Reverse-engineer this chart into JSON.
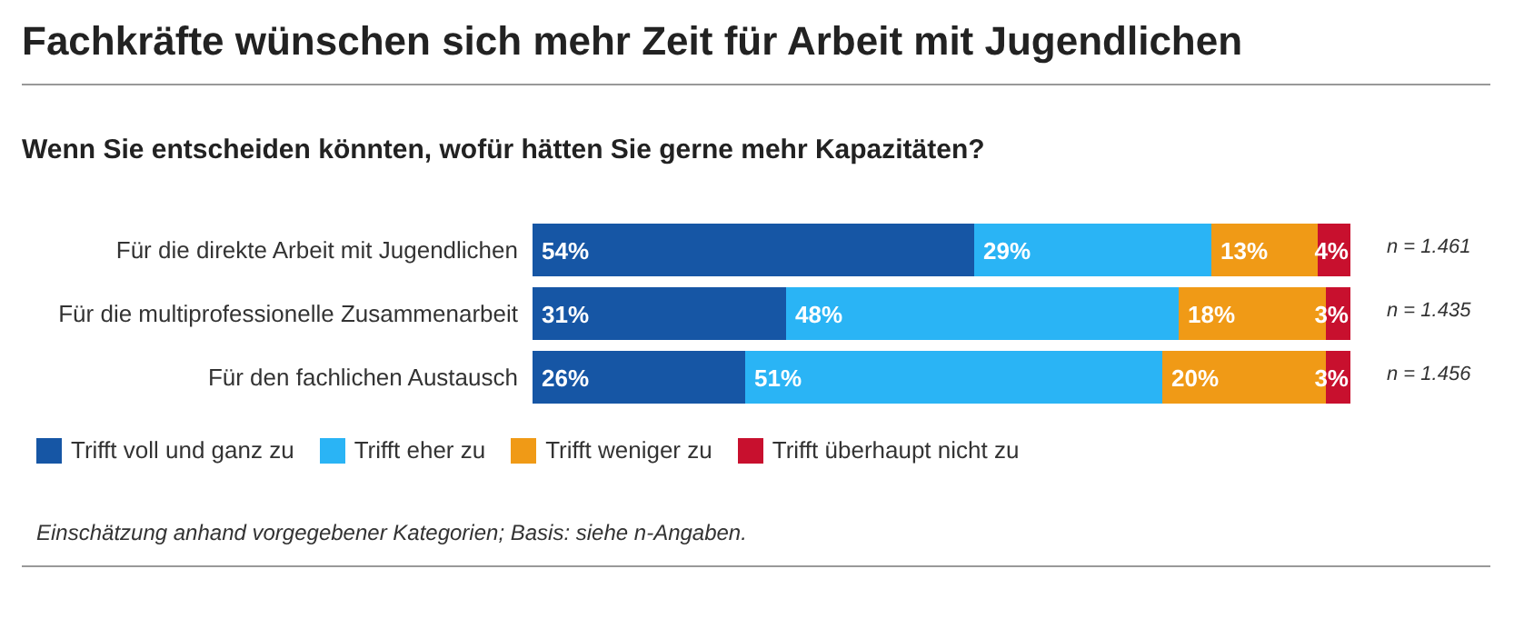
{
  "chart_data": {
    "type": "bar",
    "orientation": "horizontal",
    "stacked": true,
    "title": "Fachkräfte wünschen sich mehr Zeit für Arbeit mit Jugendlichen",
    "subtitle": "Wenn Sie entscheiden könnten, wofür hätten Sie gerne mehr Kapazitäten?",
    "categories": [
      "Für die direkte Arbeit mit Jugendlichen",
      "Für die multiprofessionelle Zusammenarbeit",
      "Für den fachlichen Austausch"
    ],
    "series": [
      {
        "name": "Trifft voll und ganz zu",
        "color": "#1656a5",
        "values": [
          54,
          31,
          26
        ],
        "value_labels": [
          "54%",
          "31%",
          "26%"
        ]
      },
      {
        "name": "Trifft eher zu",
        "color": "#2ab4f5",
        "values": [
          29,
          48,
          51
        ],
        "value_labels": [
          "29%",
          "48%",
          "51%"
        ]
      },
      {
        "name": "Trifft weniger zu",
        "color": "#f09a16",
        "values": [
          13,
          18,
          20
        ],
        "value_labels": [
          "13%",
          "18%",
          "20%"
        ]
      },
      {
        "name": "Trifft überhaupt nicht zu",
        "color": "#c8102e",
        "values": [
          4,
          3,
          3
        ],
        "value_labels": [
          "4%",
          "3%",
          "3%"
        ]
      }
    ],
    "legend": "bottom left",
    "annotations": [
      "n = 1.461",
      "n = 1.435",
      "n = 1.456",
      "Einschätzung anhand vorgegebener Kategorien; Basis: siehe n-Angaben."
    ]
  }
}
